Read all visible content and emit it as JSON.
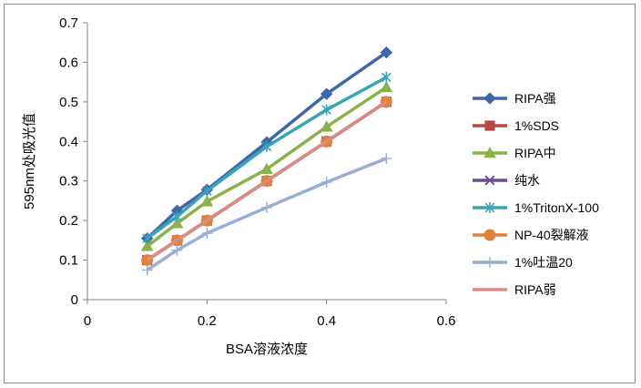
{
  "chart_data": {
    "type": "line",
    "title": "",
    "xlabel": "BSA溶液浓度",
    "ylabel": "595nm处吸光值",
    "xlim": [
      0,
      0.6
    ],
    "ylim": [
      0,
      0.7
    ],
    "x_ticks": [
      "0",
      "0.2",
      "0.4",
      "0.6"
    ],
    "y_ticks": [
      "0",
      "0.1",
      "0.2",
      "0.3",
      "0.4",
      "0.5",
      "0.6",
      "0.7"
    ],
    "grid": false,
    "legend_position": "right",
    "x": [
      0.1,
      0.15,
      0.2,
      0.3,
      0.4,
      0.5
    ],
    "series": [
      {
        "name": "RIPA强",
        "color": "#3e67a8",
        "marker": "diamond",
        "values": [
          0.155,
          0.225,
          0.278,
          0.398,
          0.52,
          0.625
        ]
      },
      {
        "name": "1%SDS",
        "color": "#b84a45",
        "marker": "square",
        "values": [
          0.1,
          0.15,
          0.2,
          0.3,
          0.4,
          0.5
        ]
      },
      {
        "name": "RIPA中",
        "color": "#8ab24a",
        "marker": "triangle",
        "values": [
          0.135,
          0.193,
          0.248,
          0.33,
          0.437,
          0.537
        ]
      },
      {
        "name": "纯水",
        "color": "#6b4d8f",
        "marker": "x",
        "values": [
          0.1,
          0.15,
          0.2,
          0.3,
          0.4,
          0.5
        ]
      },
      {
        "name": "1%TritonX-100",
        "color": "#3aa3b8",
        "marker": "asterisk",
        "values": [
          0.155,
          0.21,
          0.275,
          0.387,
          0.48,
          0.562
        ]
      },
      {
        "name": "NP-40裂解液",
        "color": "#e0823a",
        "marker": "circle",
        "values": [
          0.1,
          0.15,
          0.2,
          0.3,
          0.4,
          0.5
        ]
      },
      {
        "name": "1%吐温20",
        "color": "#97aed6",
        "marker": "plus",
        "values": [
          0.075,
          0.125,
          0.168,
          0.233,
          0.297,
          0.357
        ]
      },
      {
        "name": "RIPA弱",
        "color": "#d98b86",
        "marker": "none",
        "values": [
          0.1,
          0.15,
          0.2,
          0.3,
          0.4,
          0.5
        ]
      }
    ]
  }
}
